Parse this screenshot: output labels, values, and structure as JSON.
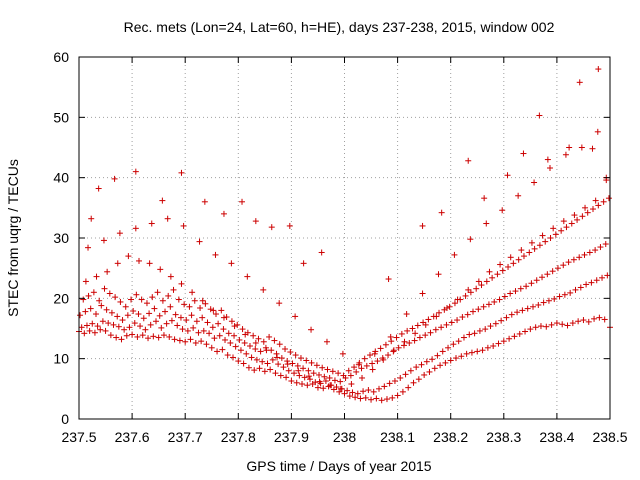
{
  "chart_data": {
    "type": "scatter",
    "title": "Rec. mets (Lon=24, Lat=60, h=HE), days 237-238, 2015, window 002",
    "xlabel": "GPS time / Days of year 2015",
    "ylabel": "STEC from uqrg / TECUs",
    "xlim": [
      237.5,
      238.5
    ],
    "ylim": [
      0,
      60
    ],
    "xticks": [
      237.5,
      237.6,
      237.7,
      237.8,
      237.9,
      238.0,
      238.1,
      238.2,
      238.3,
      238.4,
      238.5
    ],
    "xtick_labels": [
      "237.5",
      "237.6",
      "237.7",
      "237.8",
      "237.9",
      "238",
      "238.1",
      "238.2",
      "238.3",
      "238.4",
      "238.5"
    ],
    "yticks": [
      0,
      10,
      20,
      30,
      40,
      50,
      60
    ],
    "ytick_labels": [
      "0",
      "10",
      "20",
      "30",
      "40",
      "50",
      "60"
    ],
    "grid": true,
    "marker_color": "#cc0000",
    "marker": "plus",
    "series": [
      {
        "x": [
          237.5,
          237.51,
          237.52,
          237.53,
          237.54,
          237.55,
          237.56,
          237.57,
          237.58,
          237.59,
          237.6,
          237.61,
          237.62,
          237.63,
          237.64,
          237.65,
          237.66,
          237.67,
          237.68,
          237.69,
          237.7,
          237.71,
          237.72,
          237.73,
          237.74,
          237.75,
          237.76,
          237.77,
          237.78,
          237.79,
          237.8,
          237.81,
          237.82,
          237.83,
          237.84,
          237.85,
          237.86,
          237.87,
          237.88,
          237.89,
          237.9,
          237.91,
          237.92,
          237.93,
          237.94,
          237.95,
          237.96,
          237.97,
          237.98,
          237.99,
          238.0,
          238.01,
          238.02,
          238.03,
          238.04,
          238.05,
          238.06,
          238.07,
          238.08,
          238.09,
          238.1,
          238.11,
          238.12,
          238.13,
          238.14,
          238.15,
          238.16,
          238.17,
          238.18,
          238.19,
          238.2,
          238.21,
          238.22,
          238.23,
          238.24,
          238.25,
          238.26,
          238.27,
          238.28,
          238.29,
          238.3,
          238.31,
          238.32,
          238.33,
          238.34,
          238.35,
          238.36,
          238.37,
          238.38,
          238.39,
          238.4,
          238.41,
          238.42,
          238.43,
          238.44,
          238.45,
          238.46,
          238.47,
          238.48,
          238.49,
          238.5,
          237.505,
          237.515,
          237.525,
          237.535,
          237.545,
          237.555,
          237.565,
          237.575,
          237.585,
          237.595,
          237.605,
          237.615,
          237.625,
          237.635,
          237.645,
          237.655,
          237.665,
          237.675,
          237.685,
          237.695,
          237.705,
          237.715,
          237.725,
          237.735,
          237.745,
          237.755,
          237.765,
          237.775,
          237.785,
          237.795,
          237.805,
          237.815,
          237.825,
          237.835,
          237.845,
          237.855,
          237.865,
          237.875,
          237.885,
          237.895,
          237.905,
          237.915,
          237.925,
          237.935,
          237.945,
          237.955,
          237.965,
          237.975,
          237.985,
          237.995,
          238.005,
          238.015,
          238.025,
          238.035,
          238.045,
          238.055,
          238.065,
          238.075,
          238.085,
          238.095,
          238.105,
          238.115,
          238.125,
          238.135,
          238.145,
          238.155,
          238.165,
          238.175,
          238.185,
          238.195,
          238.205,
          238.215,
          238.225,
          238.235,
          238.245,
          238.255,
          238.265,
          238.275,
          238.285,
          238.295,
          238.305,
          238.315,
          238.325,
          238.335,
          238.345,
          238.355,
          238.365,
          238.375,
          238.385,
          238.395,
          238.405,
          238.415,
          238.425,
          238.435,
          238.445,
          238.455,
          238.465,
          238.475,
          238.485,
          238.495,
          237.502,
          237.512,
          237.522,
          237.532,
          237.542,
          237.552,
          237.562,
          237.572,
          237.582,
          237.592,
          237.602,
          237.612,
          237.622,
          237.632,
          237.642,
          237.652,
          237.662,
          237.672,
          237.682,
          237.692,
          237.702,
          237.712,
          237.722,
          237.732,
          237.742,
          237.752,
          237.762,
          237.772,
          237.782,
          237.792,
          237.802,
          237.812,
          237.822,
          237.832,
          237.842,
          237.852,
          237.862,
          237.872,
          237.882,
          237.892,
          237.902,
          237.912,
          237.922,
          237.932,
          237.942,
          237.952,
          237.962,
          237.972,
          237.982,
          237.992,
          238.002,
          238.012,
          238.022,
          238.032,
          238.042,
          238.052,
          238.062,
          238.072,
          238.082,
          238.092,
          238.102,
          238.112,
          238.122,
          238.132,
          238.142,
          238.152,
          238.162,
          238.172,
          238.182,
          238.192,
          238.202,
          238.212,
          238.222,
          238.232,
          238.242,
          238.252,
          238.262,
          238.272,
          238.282,
          238.292,
          238.302,
          238.312,
          238.322,
          238.332,
          238.342,
          238.352,
          238.362,
          238.372,
          238.382,
          238.392,
          238.402,
          238.412,
          238.422,
          238.432,
          238.442,
          238.452,
          238.462,
          238.472,
          238.482,
          238.492,
          237.508,
          237.518,
          237.528,
          237.538,
          237.548,
          237.558,
          237.568,
          237.578,
          237.588,
          237.598,
          237.608,
          237.618,
          237.628,
          237.638,
          237.648,
          237.658,
          237.668,
          237.678,
          237.688,
          237.698,
          237.708,
          237.718,
          237.728,
          237.738,
          237.748,
          237.758,
          237.768,
          237.778,
          237.788,
          237.798,
          237.808,
          237.818,
          237.828,
          237.838,
          237.848,
          237.858,
          237.868,
          237.878,
          237.888,
          237.898,
          237.908,
          237.918,
          237.928,
          237.938,
          237.948,
          237.958,
          237.968,
          237.978,
          237.988,
          237.998,
          238.008,
          238.018,
          238.028,
          238.038,
          238.048,
          238.058,
          238.068,
          238.078,
          238.088,
          238.098,
          238.108,
          238.118,
          238.128,
          238.138,
          238.148,
          238.158,
          238.168,
          238.178,
          238.188,
          238.198,
          238.208,
          238.218,
          238.228,
          238.238,
          238.248,
          238.258,
          238.268,
          238.278,
          238.288,
          238.298,
          238.308,
          238.318,
          238.328,
          238.338,
          238.348,
          238.358,
          238.368,
          238.378,
          238.388,
          238.398,
          238.408,
          238.418,
          238.428,
          238.438,
          238.448,
          238.458,
          238.468,
          238.478,
          238.488,
          238.498,
          237.513,
          237.533,
          237.553,
          237.573,
          237.593,
          237.613,
          237.633,
          237.653,
          237.673,
          237.693,
          237.713,
          237.733,
          237.753,
          237.773,
          237.793,
          237.813,
          237.833,
          237.853,
          237.873,
          237.893,
          237.913,
          237.933,
          237.953,
          237.973,
          237.993,
          238.013,
          238.033,
          238.053,
          238.073,
          238.093,
          238.113,
          238.133,
          238.153,
          238.173,
          238.193,
          238.213,
          238.233,
          238.253,
          238.273,
          238.293,
          238.313,
          238.333,
          238.353,
          238.373,
          238.393,
          238.413,
          238.433,
          238.453,
          238.473,
          238.493,
          237.517,
          237.547,
          237.577,
          237.607,
          237.637,
          237.667,
          237.697,
          237.727,
          237.757,
          237.787,
          237.817,
          237.847,
          237.877,
          237.907,
          237.937,
          237.967,
          237.997,
          238.027,
          238.057,
          238.087,
          238.117,
          238.147,
          238.177,
          238.207,
          238.237,
          238.267,
          238.297,
          238.327,
          238.357,
          238.387,
          238.417,
          238.447,
          238.477,
          237.523,
          237.537,
          237.567,
          237.607,
          237.657,
          237.693,
          237.737,
          237.773,
          237.807,
          237.833,
          237.863,
          237.897,
          237.923,
          237.957,
          238.083,
          238.147,
          238.183,
          238.233,
          238.263,
          238.307,
          238.337,
          238.367,
          238.383,
          238.423,
          238.443,
          238.467,
          238.478,
          238.493
        ],
        "y": [
          14.5,
          14.2,
          14.6,
          14.3,
          14.8,
          14.6,
          13.9,
          13.5,
          13.2,
          13.8,
          14.0,
          13.6,
          13.9,
          13.4,
          13.7,
          13.5,
          13.9,
          13.6,
          13.2,
          13.0,
          12.8,
          13.2,
          12.6,
          12.9,
          12.4,
          11.8,
          11.2,
          11.5,
          10.6,
          10.2,
          9.6,
          9.2,
          8.5,
          8.1,
          8.4,
          7.9,
          8.2,
          7.6,
          7.2,
          6.9,
          6.3,
          6.0,
          5.8,
          5.6,
          5.8,
          5.2,
          5.1,
          5.4,
          4.9,
          4.5,
          4.2,
          3.8,
          3.6,
          3.4,
          3.5,
          3.2,
          3.4,
          3.1,
          3.3,
          3.5,
          3.9,
          4.5,
          5.2,
          6.0,
          6.6,
          7.3,
          7.8,
          8.4,
          8.9,
          9.3,
          9.7,
          10.1,
          10.4,
          10.8,
          11.0,
          11.2,
          11.4,
          11.8,
          12.1,
          12.5,
          12.9,
          13.3,
          13.7,
          14.1,
          14.5,
          14.9,
          15.2,
          15.4,
          15.3,
          15.6,
          15.9,
          15.7,
          15.5,
          15.9,
          16.2,
          16.4,
          16.1,
          16.6,
          16.8,
          16.5,
          15.2,
          15.2,
          15.5,
          15.8,
          15.4,
          16.2,
          15.9,
          15.6,
          15.3,
          14.8,
          15.2,
          15.9,
          15.4,
          14.8,
          15.6,
          16.2,
          15.1,
          15.8,
          16.3,
          15.5,
          14.9,
          14.6,
          15.1,
          14.3,
          14.6,
          14.2,
          13.4,
          13.8,
          13.1,
          12.6,
          12.0,
          11.4,
          10.8,
          10.2,
          9.8,
          9.5,
          9.2,
          9.8,
          9.1,
          8.6,
          8.0,
          7.6,
          7.2,
          6.9,
          6.6,
          6.1,
          5.9,
          6.3,
          5.6,
          5.3,
          5.0,
          4.7,
          4.4,
          4.2,
          4.6,
          4.8,
          4.5,
          5.0,
          5.4,
          5.9,
          6.3,
          6.8,
          7.4,
          8.0,
          8.6,
          9.0,
          9.5,
          9.9,
          10.5,
          11.2,
          11.8,
          12.4,
          12.9,
          13.5,
          14.0,
          14.2,
          14.6,
          14.9,
          15.4,
          15.8,
          16.3,
          16.8,
          17.3,
          17.7,
          18.0,
          18.3,
          18.6,
          18.9,
          19.3,
          19.6,
          19.9,
          20.3,
          20.6,
          20.9,
          21.4,
          21.8,
          22.3,
          22.6,
          23.0,
          23.4,
          23.8,
          17.2,
          17.8,
          18.3,
          17.4,
          18.8,
          18.1,
          17.6,
          17.0,
          16.4,
          17.2,
          17.9,
          17.4,
          16.7,
          17.5,
          18.3,
          17.1,
          17.8,
          18.6,
          17.3,
          16.8,
          16.4,
          17.2,
          16.2,
          16.8,
          16.0,
          15.2,
          15.8,
          14.9,
          14.2,
          13.8,
          13.1,
          12.6,
          12.1,
          11.6,
          11.2,
          11.8,
          11.4,
          10.8,
          10.1,
          9.6,
          9.2,
          8.8,
          8.4,
          8.0,
          7.6,
          7.3,
          7.0,
          6.8,
          6.4,
          6.2,
          6.8,
          7.2,
          7.8,
          8.4,
          8.8,
          9.2,
          9.6,
          10.1,
          10.6,
          11.2,
          11.8,
          12.2,
          12.6,
          13.0,
          13.5,
          13.9,
          14.3,
          14.8,
          15.2,
          15.6,
          16.0,
          16.4,
          16.9,
          17.3,
          17.8,
          18.2,
          18.6,
          19.0,
          19.4,
          19.8,
          20.3,
          20.8,
          21.2,
          21.6,
          22.0,
          22.5,
          23.0,
          23.5,
          24.0,
          24.5,
          25.0,
          25.5,
          26.0,
          26.4,
          26.8,
          27.2,
          27.6,
          28.0,
          28.5,
          29.0,
          19.8,
          20.4,
          21.0,
          19.6,
          21.6,
          20.8,
          20.2,
          19.4,
          18.6,
          19.8,
          20.6,
          19.8,
          19.2,
          20.2,
          21.0,
          19.6,
          20.4,
          21.4,
          19.8,
          19.0,
          18.6,
          19.6,
          18.4,
          19.1,
          18.2,
          17.4,
          18.0,
          16.9,
          16.2,
          15.6,
          14.9,
          14.3,
          13.8,
          13.3,
          12.8,
          13.6,
          13.0,
          12.4,
          11.6,
          11.1,
          10.6,
          10.1,
          9.7,
          9.3,
          8.9,
          8.5,
          8.2,
          7.9,
          7.6,
          7.2,
          8.0,
          8.6,
          9.3,
          10.0,
          10.6,
          11.2,
          11.7,
          12.3,
          12.9,
          13.5,
          14.1,
          14.6,
          15.0,
          15.5,
          16.0,
          16.5,
          17.0,
          17.6,
          18.1,
          18.6,
          19.2,
          19.8,
          20.4,
          21.0,
          21.6,
          22.2,
          22.8,
          23.4,
          24.0,
          24.6,
          25.2,
          25.8,
          26.4,
          27.0,
          27.6,
          28.2,
          28.8,
          29.4,
          30.0,
          30.6,
          31.2,
          31.8,
          32.4,
          33.0,
          33.6,
          34.2,
          34.8,
          35.4,
          36.0,
          36.6,
          22.8,
          23.6,
          24.4,
          25.8,
          27.0,
          26.2,
          25.8,
          24.8,
          23.6,
          22.4,
          21.0,
          19.6,
          18.0,
          16.8,
          15.4,
          14.0,
          12.6,
          11.4,
          10.2,
          9.1,
          8.0,
          7.1,
          6.2,
          5.6,
          5.0,
          5.8,
          6.8,
          8.2,
          9.8,
          11.4,
          12.8,
          14.2,
          15.6,
          17.0,
          18.4,
          19.8,
          21.4,
          22.8,
          24.4,
          25.6,
          26.8,
          28.0,
          29.2,
          30.4,
          31.6,
          32.8,
          33.8,
          35.0,
          36.2,
          39.6,
          28.4,
          29.6,
          30.8,
          31.6,
          32.4,
          33.2,
          32.0,
          29.4,
          27.2,
          25.8,
          23.6,
          21.4,
          19.2,
          17.0,
          14.8,
          12.8,
          10.8,
          9.0,
          10.8,
          13.6,
          17.4,
          20.8,
          24.0,
          27.2,
          29.8,
          32.4,
          34.6,
          37.0,
          39.2,
          41.6,
          43.8,
          45.0,
          47.6,
          33.2,
          38.2,
          39.8,
          41.0,
          36.2,
          40.8,
          36.0,
          34.0,
          36.0,
          32.8,
          31.8,
          32.0,
          25.8,
          27.6,
          23.2,
          32.0,
          34.2,
          42.8,
          36.6,
          40.4,
          44.0,
          50.3,
          43.0,
          45.0,
          55.8,
          44.8,
          58.0,
          40.0
        ]
      }
    ]
  }
}
